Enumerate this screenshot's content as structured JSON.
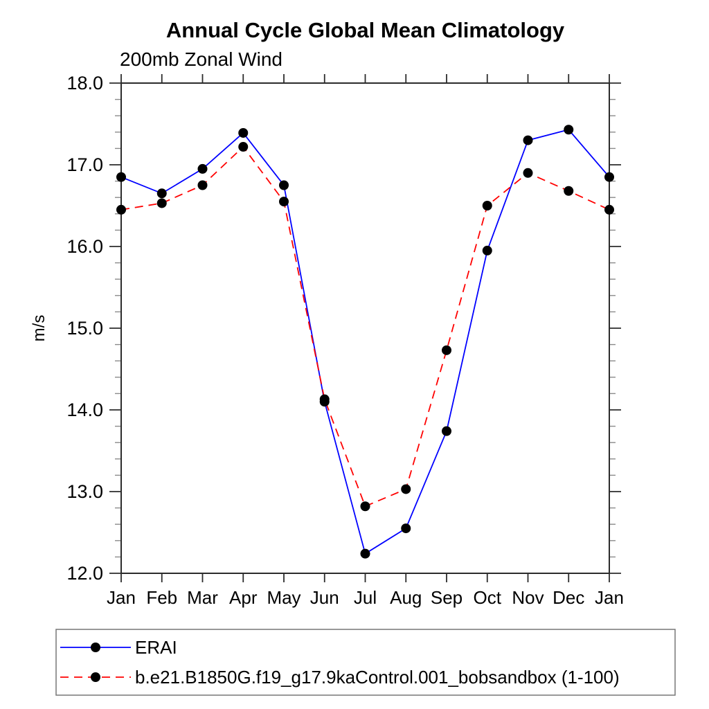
{
  "header": {
    "title": "Annual Cycle Global Mean Climatology",
    "subtitle": "200mb Zonal Wind"
  },
  "chart_data": {
    "type": "line",
    "categories": [
      "Jan",
      "Feb",
      "Mar",
      "Apr",
      "May",
      "Jun",
      "Jul",
      "Aug",
      "Sep",
      "Oct",
      "Nov",
      "Dec",
      "Jan"
    ],
    "series": [
      {
        "name": "ERAI",
        "color": "#0000ff",
        "line_style": "solid",
        "marker": "black-dot",
        "values": [
          16.85,
          16.65,
          16.95,
          17.39,
          16.75,
          14.1,
          12.24,
          12.55,
          13.74,
          15.95,
          17.3,
          17.43,
          16.85
        ]
      },
      {
        "name": "b.e21.B1850G.f19_g17.9kaControl.001_bobsandbox (1-100)",
        "color": "#ff0000",
        "line_style": "dashed",
        "marker": "black-dot",
        "values": [
          16.45,
          16.53,
          16.75,
          17.22,
          16.55,
          14.13,
          12.82,
          13.03,
          14.73,
          16.5,
          16.9,
          16.68,
          16.45
        ]
      }
    ],
    "title": "Annual Cycle Global Mean Climatology",
    "subtitle": "200mb Zonal Wind",
    "xlabel": "",
    "ylabel": "m/s",
    "ylim": [
      12.0,
      18.0
    ],
    "ytick_major_interval": 1.0,
    "ytick_minor_interval": 0.2,
    "ytick_labels": [
      "12.0",
      "13.0",
      "14.0",
      "15.0",
      "16.0",
      "17.0",
      "18.0"
    ],
    "grid": false,
    "legend_position": "bottom-left-box",
    "marker_color": "#000000",
    "frame_color": "#2b2b2b",
    "minor_tick_color": "#8a8a8a"
  }
}
